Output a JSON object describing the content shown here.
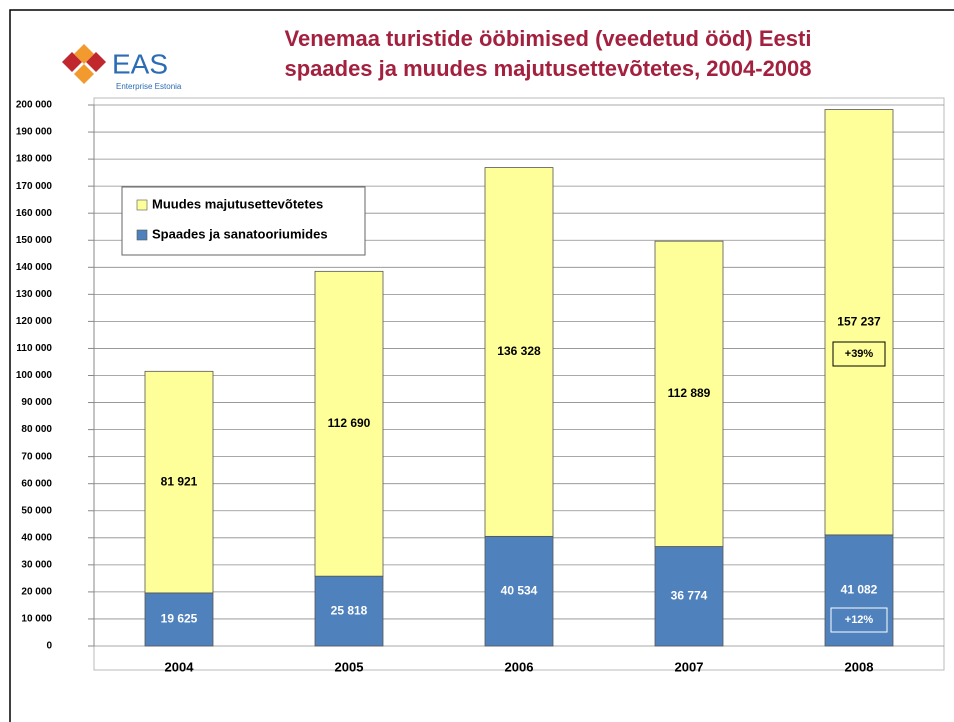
{
  "logo": {
    "name": "EAS",
    "subtitle": "Enterprise Estonia"
  },
  "chart_data": {
    "type": "stacked-bar",
    "title": [
      "Venemaa turistide ööbimised (veedetud ööd) Eesti",
      "spaades ja muudes majutusettevõtetes, 2004-2008"
    ],
    "categories": [
      "2004",
      "2005",
      "2006",
      "2007",
      "2008"
    ],
    "series": [
      {
        "name": "Spaades ja sanatooriumides",
        "color": "#4f81bd",
        "label_color": "#ffffff",
        "values": [
          19625,
          25818,
          40534,
          36774,
          41082
        ],
        "value_labels": [
          "19 625",
          "25 818",
          "40 534",
          "36 774",
          "41 082"
        ]
      },
      {
        "name": "Muudes majutusettevõtetes",
        "color": "#ffff99",
        "label_color": "#000000",
        "values": [
          81921,
          112690,
          136328,
          112889,
          157237
        ],
        "value_labels": [
          "81 921",
          "112 690",
          "136 328",
          "112 889",
          "157 237"
        ]
      }
    ],
    "annotations": [
      "+39%",
      "+12%"
    ],
    "ylim": [
      0,
      200000
    ],
    "yticks": [
      0,
      {
        "value": 10000,
        "label": "10 000"
      },
      {
        "value": 20000,
        "label": "20 000"
      },
      {
        "value": 30000,
        "label": "30 000"
      },
      {
        "value": 40000,
        "label": "40 000"
      },
      {
        "value": 50000,
        "label": "50 000"
      },
      {
        "value": 60000,
        "label": "60 000"
      },
      {
        "value": 70000,
        "label": "70 000"
      },
      {
        "value": 80000,
        "label": "80 000"
      },
      {
        "value": 90000,
        "label": "90 000"
      },
      {
        "value": 100000,
        "label": "100 000"
      },
      {
        "value": 110000,
        "label": "110 000"
      },
      {
        "value": 120000,
        "label": "120 000"
      },
      {
        "value": 130000,
        "label": "130 000"
      },
      {
        "value": 140000,
        "label": "140 000"
      },
      {
        "value": 150000,
        "label": "150 000"
      },
      {
        "value": 160000,
        "label": "160 000"
      },
      {
        "value": 170000,
        "label": "170 000"
      },
      {
        "value": 180000,
        "label": "180 000"
      },
      {
        "value": 190000,
        "label": "190 000"
      },
      {
        "value": 200000,
        "label": "200 000"
      }
    ],
    "grid": true,
    "legend": "upper left"
  }
}
